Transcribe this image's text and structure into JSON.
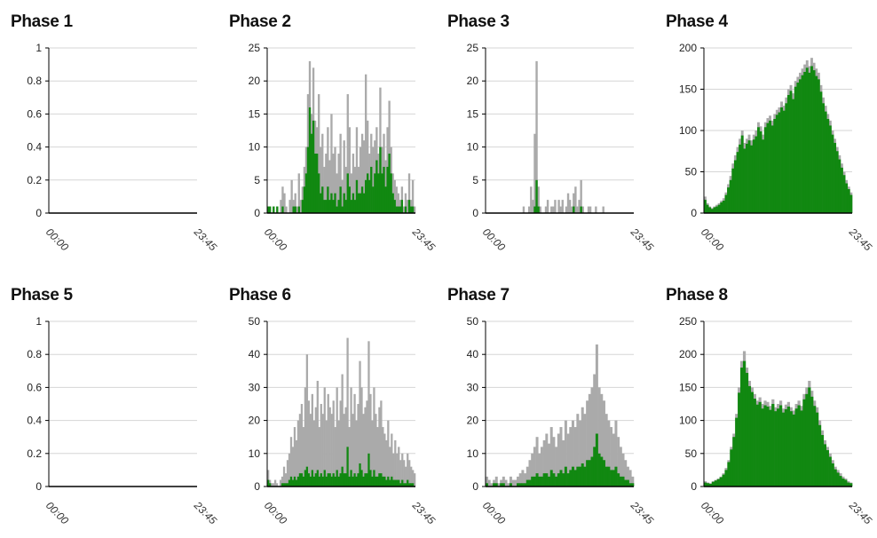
{
  "colors": {
    "total": "#aaaaaa",
    "highlight": "#118811",
    "grid": "#d6d6d6",
    "axis": "#000000"
  },
  "chart_data": [
    {
      "type": "bar",
      "title": "Phase 1",
      "yticks": [
        "0",
        "0.2",
        "0.4",
        "0.6",
        "0.8",
        "1"
      ],
      "ymax": 1,
      "xticks": [
        "00:00",
        "23:45"
      ],
      "gray": [],
      "green": []
    },
    {
      "type": "bar",
      "title": "Phase 2",
      "yticks": [
        "0",
        "5",
        "10",
        "15",
        "20",
        "25"
      ],
      "ymax": 25,
      "xticks": [
        "00:00",
        "23:45"
      ],
      "gray": [
        1,
        1,
        0,
        1,
        0,
        1,
        0,
        2,
        4,
        3,
        1,
        0,
        2,
        5,
        2,
        3,
        1,
        6,
        2,
        4,
        7,
        10,
        18,
        23,
        15,
        22,
        14,
        13,
        18,
        10,
        12,
        7,
        9,
        13,
        8,
        15,
        9,
        10,
        6,
        9,
        12,
        5,
        11,
        7,
        18,
        13,
        6,
        9,
        7,
        13,
        7,
        10,
        12,
        11,
        21,
        14,
        9,
        12,
        10,
        11,
        13,
        9,
        19,
        10,
        12,
        8,
        13,
        17,
        10,
        6,
        5,
        4,
        3,
        2,
        4,
        1,
        3,
        2,
        6,
        2,
        5,
        1
      ],
      "green": [
        1,
        1,
        0,
        1,
        0,
        1,
        0,
        0,
        1,
        0,
        0,
        0,
        0,
        0,
        1,
        1,
        0,
        1,
        0,
        2,
        4,
        6,
        10,
        16,
        12,
        14,
        9,
        9,
        6,
        3,
        4,
        2,
        2,
        4,
        2,
        3,
        2,
        3,
        1,
        2,
        4,
        1,
        3,
        2,
        6,
        4,
        2,
        3,
        2,
        5,
        3,
        3,
        4,
        3,
        5,
        6,
        5,
        7,
        4,
        6,
        8,
        6,
        10,
        6,
        7,
        4,
        7,
        9,
        6,
        3,
        2,
        1,
        1,
        1,
        2,
        0,
        1,
        0,
        2,
        1,
        1,
        0
      ]
    },
    {
      "type": "bar",
      "title": "Phase 3",
      "yticks": [
        "0",
        "5",
        "10",
        "15",
        "20",
        "25"
      ],
      "ymax": 25,
      "xticks": [
        "00:00",
        "23:45"
      ],
      "gray": [
        0,
        0,
        0,
        0,
        0,
        0,
        0,
        0,
        0,
        0,
        0,
        0,
        0,
        0,
        0,
        0,
        0,
        0,
        0,
        0,
        1,
        0,
        0,
        1,
        4,
        2,
        12,
        23,
        4,
        1,
        0,
        0,
        1,
        2,
        0,
        1,
        1,
        2,
        0,
        2,
        1,
        2,
        0,
        1,
        3,
        2,
        1,
        3,
        4,
        1,
        2,
        5,
        1,
        0,
        0,
        1,
        1,
        0,
        0,
        1,
        0,
        0,
        0,
        1,
        0,
        0,
        0,
        0,
        0,
        0,
        0,
        0,
        0,
        0,
        0,
        0,
        0,
        0,
        0,
        0
      ],
      "green": [
        0,
        0,
        0,
        0,
        0,
        0,
        0,
        0,
        0,
        0,
        0,
        0,
        0,
        0,
        0,
        0,
        0,
        0,
        0,
        0,
        0,
        0,
        0,
        0,
        0,
        0,
        1,
        5,
        1,
        0,
        0,
        0,
        0,
        0,
        0,
        0,
        0,
        0,
        0,
        0,
        0,
        0,
        0,
        0,
        0,
        0,
        0,
        1,
        0,
        0,
        0,
        1,
        0,
        0,
        0,
        0,
        0,
        0,
        0,
        0,
        0,
        0,
        0,
        0,
        0,
        0,
        0,
        0,
        0,
        0,
        0,
        0,
        0,
        0,
        0,
        0,
        0,
        0,
        0,
        0
      ]
    },
    {
      "type": "bar",
      "title": "Phase 4",
      "yticks": [
        "0",
        "50",
        "100",
        "150",
        "200"
      ],
      "ymax": 200,
      "xticks": [
        "00:00",
        "23:45"
      ],
      "gray": [
        20,
        12,
        8,
        6,
        8,
        10,
        12,
        15,
        18,
        25,
        35,
        45,
        60,
        70,
        80,
        90,
        100,
        85,
        90,
        95,
        88,
        95,
        100,
        110,
        105,
        95,
        110,
        115,
        118,
        112,
        120,
        125,
        128,
        135,
        130,
        140,
        150,
        155,
        145,
        160,
        165,
        170,
        175,
        180,
        185,
        178,
        188,
        182,
        175,
        170,
        155,
        140,
        130,
        120,
        112,
        100,
        90,
        80,
        70,
        60,
        50,
        40,
        32,
        25
      ],
      "green": [
        16,
        10,
        7,
        5,
        7,
        8,
        10,
        13,
        15,
        22,
        31,
        40,
        54,
        64,
        74,
        83,
        94,
        78,
        84,
        88,
        82,
        89,
        93,
        104,
        99,
        89,
        104,
        109,
        112,
        106,
        114,
        119,
        122,
        128,
        124,
        133,
        143,
        148,
        138,
        153,
        158,
        162,
        167,
        171,
        176,
        170,
        178,
        173,
        166,
        162,
        147,
        133,
        123,
        114,
        106,
        95,
        85,
        75,
        65,
        55,
        46,
        36,
        29,
        22
      ]
    },
    {
      "type": "bar",
      "title": "Phase 5",
      "yticks": [
        "0",
        "0.2",
        "0.4",
        "0.6",
        "0.8",
        "1"
      ],
      "ymax": 1,
      "xticks": [
        "00:00",
        "23:45"
      ],
      "gray": [],
      "green": []
    },
    {
      "type": "bar",
      "title": "Phase 6",
      "yticks": [
        "0",
        "10",
        "20",
        "30",
        "40",
        "50"
      ],
      "ymax": 50,
      "xticks": [
        "00:00",
        "23:45"
      ],
      "gray": [
        5,
        2,
        1,
        1,
        2,
        1,
        0,
        2,
        3,
        6,
        4,
        8,
        10,
        15,
        12,
        18,
        14,
        20,
        22,
        25,
        18,
        30,
        40,
        26,
        22,
        28,
        20,
        24,
        32,
        18,
        25,
        22,
        30,
        20,
        28,
        24,
        22,
        26,
        18,
        30,
        20,
        26,
        34,
        22,
        24,
        45,
        18,
        30,
        22,
        28,
        20,
        25,
        38,
        30,
        22,
        24,
        26,
        44,
        28,
        20,
        30,
        22,
        18,
        24,
        26,
        18,
        16,
        14,
        20,
        12,
        16,
        10,
        14,
        10,
        12,
        8,
        10,
        8,
        6,
        10,
        8,
        6,
        5,
        4
      ],
      "green": [
        2,
        1,
        0,
        0,
        0,
        0,
        0,
        0,
        1,
        1,
        1,
        1,
        2,
        3,
        2,
        3,
        2,
        3,
        4,
        4,
        3,
        5,
        6,
        4,
        3,
        5,
        3,
        4,
        5,
        3,
        4,
        3,
        5,
        3,
        4,
        4,
        3,
        4,
        3,
        5,
        3,
        4,
        6,
        4,
        4,
        12,
        3,
        5,
        3,
        4,
        3,
        4,
        7,
        5,
        3,
        4,
        4,
        10,
        5,
        3,
        5,
        3,
        3,
        4,
        4,
        3,
        3,
        2,
        3,
        2,
        3,
        2,
        2,
        2,
        2,
        1,
        2,
        1,
        1,
        2,
        1,
        1,
        1,
        0
      ]
    },
    {
      "type": "bar",
      "title": "Phase 7",
      "yticks": [
        "0",
        "10",
        "20",
        "30",
        "40",
        "50"
      ],
      "ymax": 50,
      "xticks": [
        "00:00",
        "23:45"
      ],
      "gray": [
        3,
        2,
        1,
        2,
        3,
        1,
        2,
        3,
        2,
        1,
        3,
        2,
        2,
        3,
        4,
        5,
        4,
        6,
        8,
        10,
        12,
        15,
        10,
        12,
        14,
        16,
        13,
        18,
        15,
        12,
        16,
        18,
        14,
        20,
        16,
        18,
        20,
        18,
        22,
        20,
        24,
        22,
        26,
        28,
        30,
        34,
        43,
        30,
        28,
        26,
        22,
        20,
        18,
        16,
        20,
        15,
        12,
        10,
        8,
        6,
        5,
        3
      ],
      "green": [
        1,
        0,
        0,
        1,
        1,
        0,
        1,
        1,
        0,
        0,
        1,
        0,
        0,
        1,
        1,
        1,
        1,
        2,
        2,
        3,
        3,
        4,
        3,
        3,
        4,
        4,
        3,
        5,
        4,
        3,
        4,
        5,
        4,
        6,
        4,
        5,
        6,
        5,
        6,
        6,
        7,
        6,
        8,
        8,
        9,
        12,
        16,
        10,
        9,
        8,
        6,
        6,
        5,
        5,
        6,
        4,
        3,
        3,
        2,
        2,
        1,
        1
      ]
    },
    {
      "type": "bar",
      "title": "Phase 8",
      "yticks": [
        "0",
        "50",
        "100",
        "150",
        "200",
        "250"
      ],
      "ymax": 250,
      "xticks": [
        "00:00",
        "23:45"
      ],
      "gray": [
        8,
        6,
        5,
        8,
        10,
        12,
        15,
        20,
        28,
        40,
        60,
        80,
        110,
        150,
        190,
        205,
        180,
        160,
        150,
        140,
        130,
        135,
        125,
        130,
        128,
        122,
        132,
        120,
        125,
        130,
        118,
        124,
        128,
        120,
        115,
        125,
        130,
        122,
        140,
        150,
        160,
        145,
        130,
        120,
        100,
        85,
        70,
        60,
        50,
        40,
        30,
        25,
        20,
        15,
        12,
        8,
        6
      ],
      "green": [
        6,
        5,
        4,
        7,
        9,
        11,
        14,
        18,
        25,
        37,
        56,
        75,
        104,
        142,
        180,
        190,
        172,
        152,
        143,
        133,
        124,
        128,
        118,
        123,
        121,
        116,
        125,
        114,
        118,
        123,
        112,
        117,
        121,
        114,
        109,
        118,
        123,
        115,
        132,
        140,
        150,
        136,
        122,
        112,
        93,
        78,
        64,
        55,
        45,
        35,
        26,
        21,
        16,
        12,
        10,
        6,
        5
      ]
    }
  ]
}
